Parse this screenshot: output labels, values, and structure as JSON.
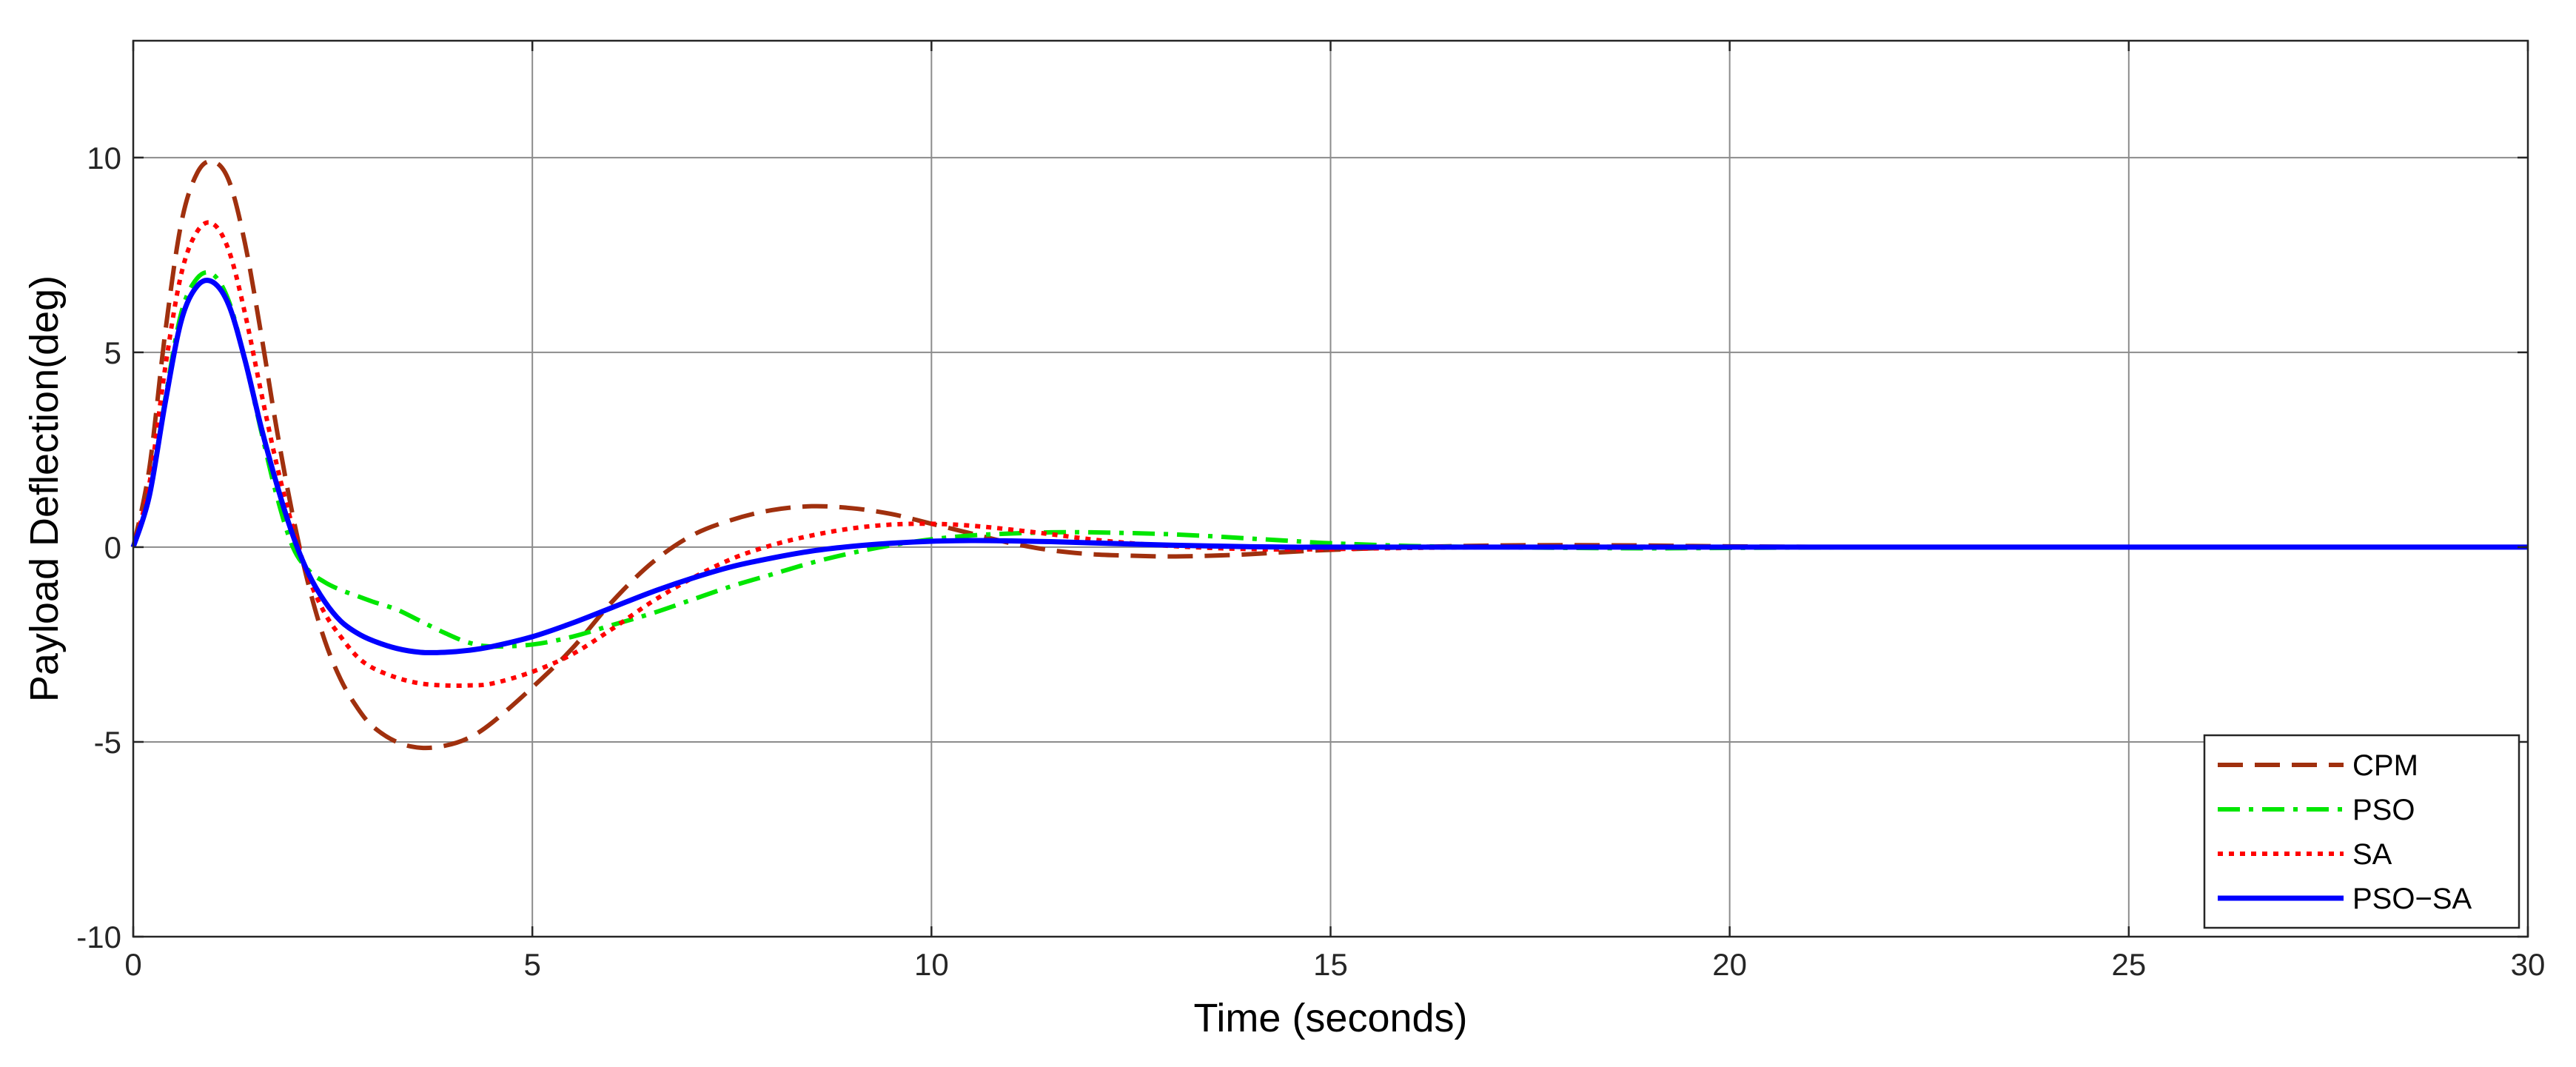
{
  "chart_data": {
    "type": "line",
    "title": "",
    "xlabel": "Time (seconds)",
    "ylabel": "Payload Deflection(deg)",
    "xlim": [
      0,
      30
    ],
    "ylim": [
      -10,
      13
    ],
    "xticks": [
      0,
      5,
      10,
      15,
      20,
      25,
      30
    ],
    "yticks": [
      -10,
      -5,
      0,
      5,
      10
    ],
    "grid": true,
    "legend_position": "bottom-right",
    "series": [
      {
        "name": "CPM",
        "color": "#A0300E",
        "dash": "dashed",
        "x": [
          0,
          0.2,
          0.4,
          0.6,
          0.8,
          1.0,
          1.2,
          1.4,
          1.6,
          1.8,
          2.0,
          2.2,
          2.4,
          2.6,
          2.8,
          3.0,
          3.3,
          3.6,
          3.9,
          4.2,
          4.5,
          5.0,
          5.5,
          6.0,
          6.5,
          7.0,
          7.5,
          8.0,
          8.5,
          9.0,
          9.5,
          10.0,
          10.5,
          11.0,
          11.5,
          12.0,
          12.5,
          13.0,
          13.5,
          14.0,
          14.5,
          15.0,
          16.0,
          17.0,
          18.0,
          19.0,
          20.0,
          22.0,
          25.0,
          30.0
        ],
        "values": [
          0,
          2.0,
          5.5,
          8.3,
          9.6,
          9.9,
          9.4,
          7.8,
          5.5,
          3.0,
          0.8,
          -1.0,
          -2.4,
          -3.4,
          -4.1,
          -4.6,
          -5.0,
          -5.15,
          -5.1,
          -4.9,
          -4.5,
          -3.6,
          -2.6,
          -1.4,
          -0.4,
          0.3,
          0.7,
          0.95,
          1.05,
          1.0,
          0.85,
          0.6,
          0.35,
          0.1,
          -0.08,
          -0.18,
          -0.22,
          -0.24,
          -0.22,
          -0.18,
          -0.12,
          -0.07,
          0.0,
          0.04,
          0.05,
          0.04,
          0.02,
          0.0,
          0.0,
          0.0
        ]
      },
      {
        "name": "PSO",
        "color": "#00E600",
        "dash": "dashdot",
        "x": [
          0,
          0.2,
          0.4,
          0.6,
          0.8,
          1.0,
          1.2,
          1.4,
          1.6,
          1.8,
          2.0,
          2.2,
          2.4,
          2.6,
          2.8,
          3.0,
          3.3,
          3.6,
          3.9,
          4.2,
          4.5,
          5.0,
          5.5,
          6.0,
          6.5,
          7.0,
          7.5,
          8.0,
          8.5,
          9.0,
          9.5,
          10.0,
          10.5,
          11.0,
          11.5,
          12.0,
          12.5,
          13.0,
          13.5,
          14.0,
          14.5,
          15.0,
          16.0,
          17.0,
          18.0,
          19.0,
          20.0,
          22.0,
          25.0,
          30.0
        ],
        "values": [
          0,
          1.3,
          3.8,
          6.0,
          6.9,
          7.0,
          6.3,
          4.8,
          3.0,
          1.3,
          0.0,
          -0.6,
          -0.9,
          -1.1,
          -1.25,
          -1.4,
          -1.6,
          -1.9,
          -2.2,
          -2.45,
          -2.55,
          -2.5,
          -2.3,
          -2.0,
          -1.7,
          -1.35,
          -1.0,
          -0.7,
          -0.4,
          -0.15,
          0.05,
          0.2,
          0.3,
          0.35,
          0.38,
          0.38,
          0.36,
          0.33,
          0.28,
          0.22,
          0.16,
          0.1,
          0.03,
          0.0,
          -0.02,
          -0.03,
          -0.02,
          0.0,
          0.0,
          0.0
        ]
      },
      {
        "name": "SA",
        "color": "#FF0000",
        "dash": "dotted",
        "x": [
          0,
          0.2,
          0.4,
          0.6,
          0.8,
          1.0,
          1.2,
          1.4,
          1.6,
          1.8,
          2.0,
          2.2,
          2.4,
          2.6,
          2.8,
          3.0,
          3.3,
          3.6,
          3.9,
          4.2,
          4.5,
          5.0,
          5.5,
          6.0,
          6.5,
          7.0,
          7.5,
          8.0,
          8.5,
          9.0,
          9.5,
          10.0,
          10.5,
          11.0,
          11.5,
          12.0,
          12.5,
          13.0,
          13.5,
          14.0,
          14.5,
          15.0,
          16.0,
          17.0,
          18.0,
          19.0,
          20.0,
          22.0,
          25.0,
          30.0
        ],
        "values": [
          0,
          1.6,
          4.6,
          7.0,
          8.1,
          8.3,
          7.6,
          6.0,
          4.0,
          2.1,
          0.5,
          -0.8,
          -1.7,
          -2.3,
          -2.8,
          -3.1,
          -3.35,
          -3.5,
          -3.55,
          -3.55,
          -3.5,
          -3.2,
          -2.75,
          -2.1,
          -1.4,
          -0.8,
          -0.3,
          0.05,
          0.3,
          0.48,
          0.58,
          0.6,
          0.55,
          0.45,
          0.33,
          0.2,
          0.1,
          0.03,
          -0.02,
          -0.05,
          -0.06,
          -0.05,
          -0.02,
          0.0,
          0.01,
          0.01,
          0.0,
          0.0,
          0.0,
          0.0
        ]
      },
      {
        "name": "PSO−SA",
        "color": "#0000FF",
        "dash": "solid",
        "x": [
          0,
          0.2,
          0.4,
          0.6,
          0.8,
          1.0,
          1.2,
          1.4,
          1.6,
          1.8,
          2.0,
          2.2,
          2.4,
          2.6,
          2.8,
          3.0,
          3.3,
          3.6,
          3.9,
          4.2,
          4.5,
          5.0,
          5.5,
          6.0,
          6.5,
          7.0,
          7.5,
          8.0,
          8.5,
          9.0,
          9.5,
          10.0,
          10.5,
          11.0,
          11.5,
          12.0,
          12.5,
          13.0,
          13.5,
          14.0,
          14.5,
          15.0,
          16.0,
          17.0,
          18.0,
          19.0,
          20.0,
          22.0,
          25.0,
          30.0
        ],
        "values": [
          0,
          1.3,
          3.7,
          5.8,
          6.7,
          6.8,
          6.2,
          4.8,
          3.1,
          1.6,
          0.3,
          -0.7,
          -1.4,
          -1.9,
          -2.2,
          -2.4,
          -2.6,
          -2.7,
          -2.7,
          -2.65,
          -2.55,
          -2.3,
          -1.95,
          -1.55,
          -1.15,
          -0.8,
          -0.5,
          -0.28,
          -0.1,
          0.02,
          0.1,
          0.15,
          0.17,
          0.16,
          0.14,
          0.11,
          0.08,
          0.05,
          0.03,
          0.01,
          0.0,
          0.0,
          0.0,
          0.0,
          0.0,
          0.0,
          0.0,
          0.0,
          0.0,
          0.0
        ]
      }
    ]
  }
}
